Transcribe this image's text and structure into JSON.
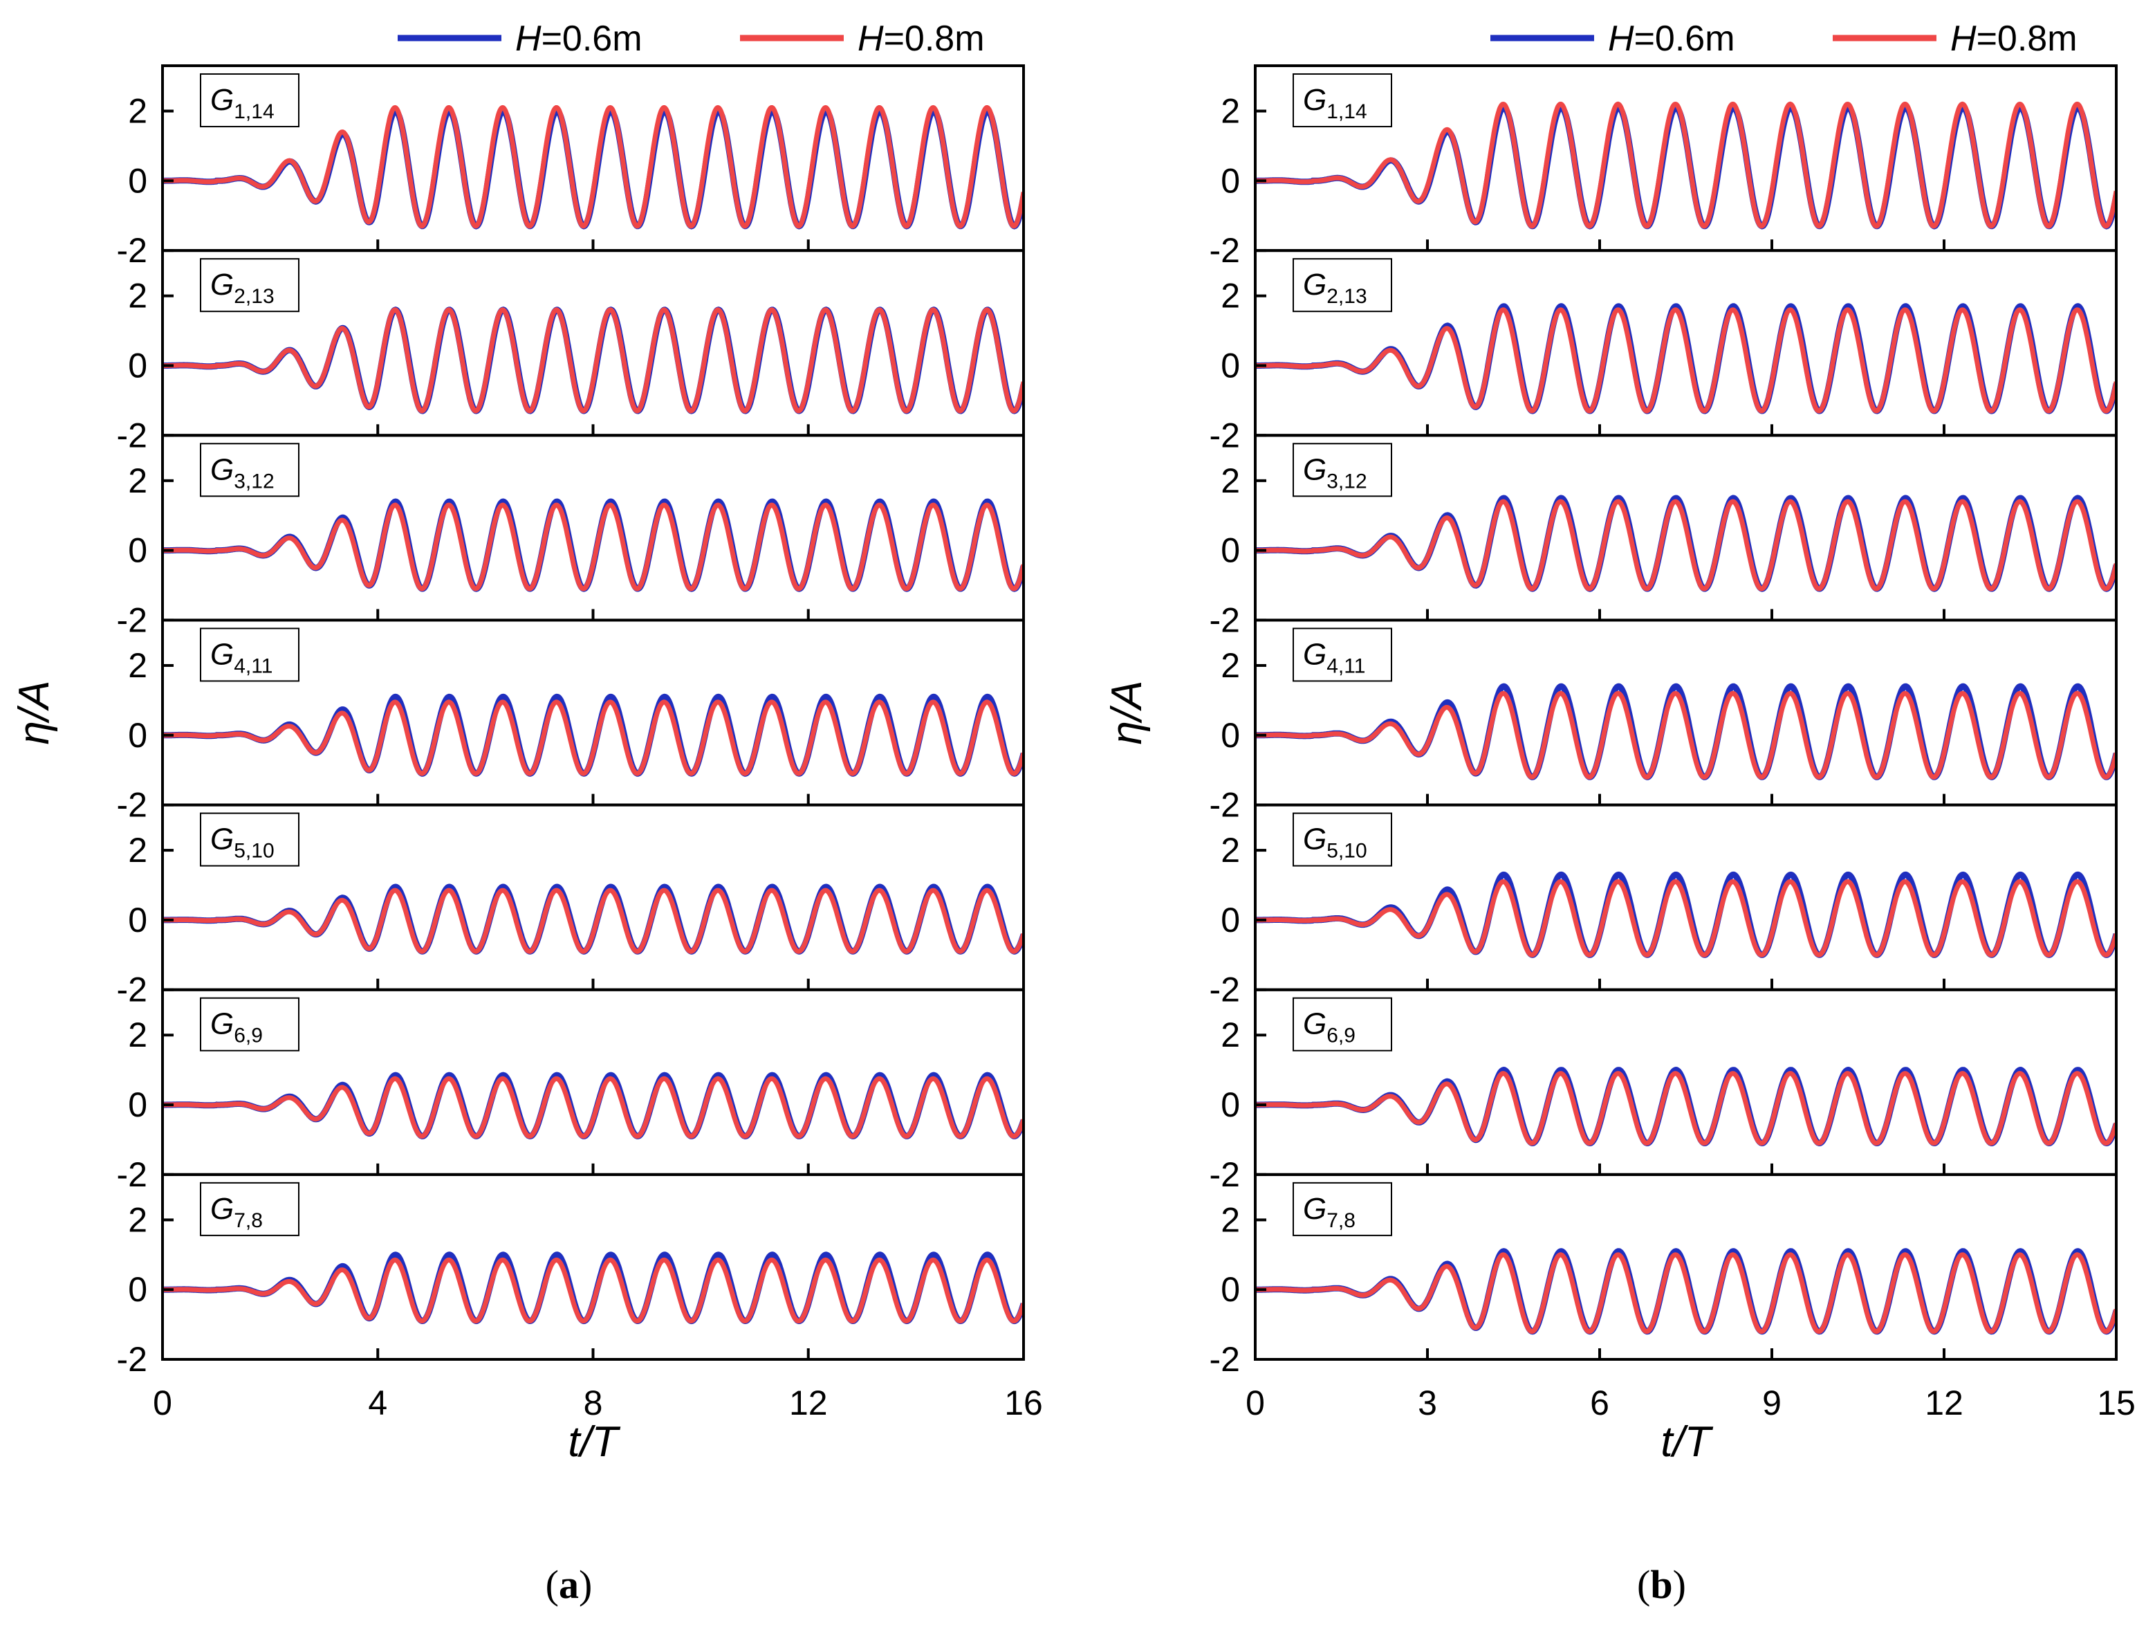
{
  "legend": {
    "series": [
      {
        "name_var": "H",
        "name_val": "=0.6m",
        "color": "#1f2fbf"
      },
      {
        "name_var": "H",
        "name_val": "=0.8m",
        "color": "#ef4646"
      }
    ]
  },
  "y_label": {
    "var": "η",
    "rest": "/A"
  },
  "x_label": {
    "var": "t",
    "rest": "/T"
  },
  "chart_data": [
    {
      "panel": "(a)",
      "panel_letter": "a",
      "type": "line",
      "xlabel": "t/T",
      "ylabel": "η/A",
      "xlim": [
        0,
        16
      ],
      "ylim": [
        -2,
        3.3
      ],
      "xticks": [
        0,
        4,
        8,
        12,
        16
      ],
      "xtick_labels": [
        "0",
        "4",
        "8",
        "12",
        "16"
      ],
      "yticks": [
        -2,
        0,
        2
      ],
      "ytick_labels": [
        "-2",
        "0",
        "2"
      ],
      "grid": false,
      "legend_position": "top",
      "gauges": [
        {
          "gauge": "G",
          "sub": "1,14",
          "peak_06": 2.0,
          "peak_08": 2.1,
          "trough": -1.3
        },
        {
          "gauge": "G",
          "sub": "2,13",
          "peak_06": 1.6,
          "peak_08": 1.6,
          "trough": -1.3
        },
        {
          "gauge": "G",
          "sub": "3,12",
          "peak_06": 1.4,
          "peak_08": 1.3,
          "trough": -1.1
        },
        {
          "gauge": "G",
          "sub": "4,11",
          "peak_06": 1.1,
          "peak_08": 0.95,
          "trough": -1.1
        },
        {
          "gauge": "G",
          "sub": "5,10",
          "peak_06": 0.95,
          "peak_08": 0.85,
          "trough": -0.9
        },
        {
          "gauge": "G",
          "sub": "6,9",
          "peak_06": 0.85,
          "peak_08": 0.75,
          "trough": -0.9
        },
        {
          "gauge": "G",
          "sub": "7,8",
          "peak_06": 1.0,
          "peak_08": 0.85,
          "trough": -0.9
        }
      ],
      "series": [
        {
          "name": "H=0.6m",
          "color": "#1f2fbf"
        },
        {
          "name": "H=0.8m",
          "color": "#ef4646"
        }
      ]
    },
    {
      "panel": "(b)",
      "panel_letter": "b",
      "type": "line",
      "xlabel": "t/T",
      "ylabel": "η/A",
      "xlim": [
        0,
        15
      ],
      "ylim": [
        -2,
        3.3
      ],
      "xticks": [
        0,
        3,
        6,
        9,
        12,
        15
      ],
      "xtick_labels": [
        "0",
        "3",
        "6",
        "9",
        "12",
        "15"
      ],
      "yticks": [
        -2,
        0,
        2
      ],
      "ytick_labels": [
        "-2",
        "0",
        "2"
      ],
      "grid": false,
      "legend_position": "top",
      "gauges": [
        {
          "gauge": "G",
          "sub": "1,14",
          "peak_06": 2.1,
          "peak_08": 2.2,
          "trough": -1.3
        },
        {
          "gauge": "G",
          "sub": "2,13",
          "peak_06": 1.7,
          "peak_08": 1.6,
          "trough": -1.3
        },
        {
          "gauge": "G",
          "sub": "3,12",
          "peak_06": 1.5,
          "peak_08": 1.4,
          "trough": -1.1
        },
        {
          "gauge": "G",
          "sub": "4,11",
          "peak_06": 1.4,
          "peak_08": 1.2,
          "trough": -1.2
        },
        {
          "gauge": "G",
          "sub": "5,10",
          "peak_06": 1.3,
          "peak_08": 1.1,
          "trough": -1.0
        },
        {
          "gauge": "G",
          "sub": "6,9",
          "peak_06": 1.0,
          "peak_08": 0.9,
          "trough": -1.1
        },
        {
          "gauge": "G",
          "sub": "7,8",
          "peak_06": 1.1,
          "peak_08": 1.0,
          "trough": -1.2
        }
      ],
      "series": [
        {
          "name": "H=0.6m",
          "color": "#1f2fbf"
        },
        {
          "name": "H=0.8m",
          "color": "#ef4646"
        }
      ]
    }
  ]
}
